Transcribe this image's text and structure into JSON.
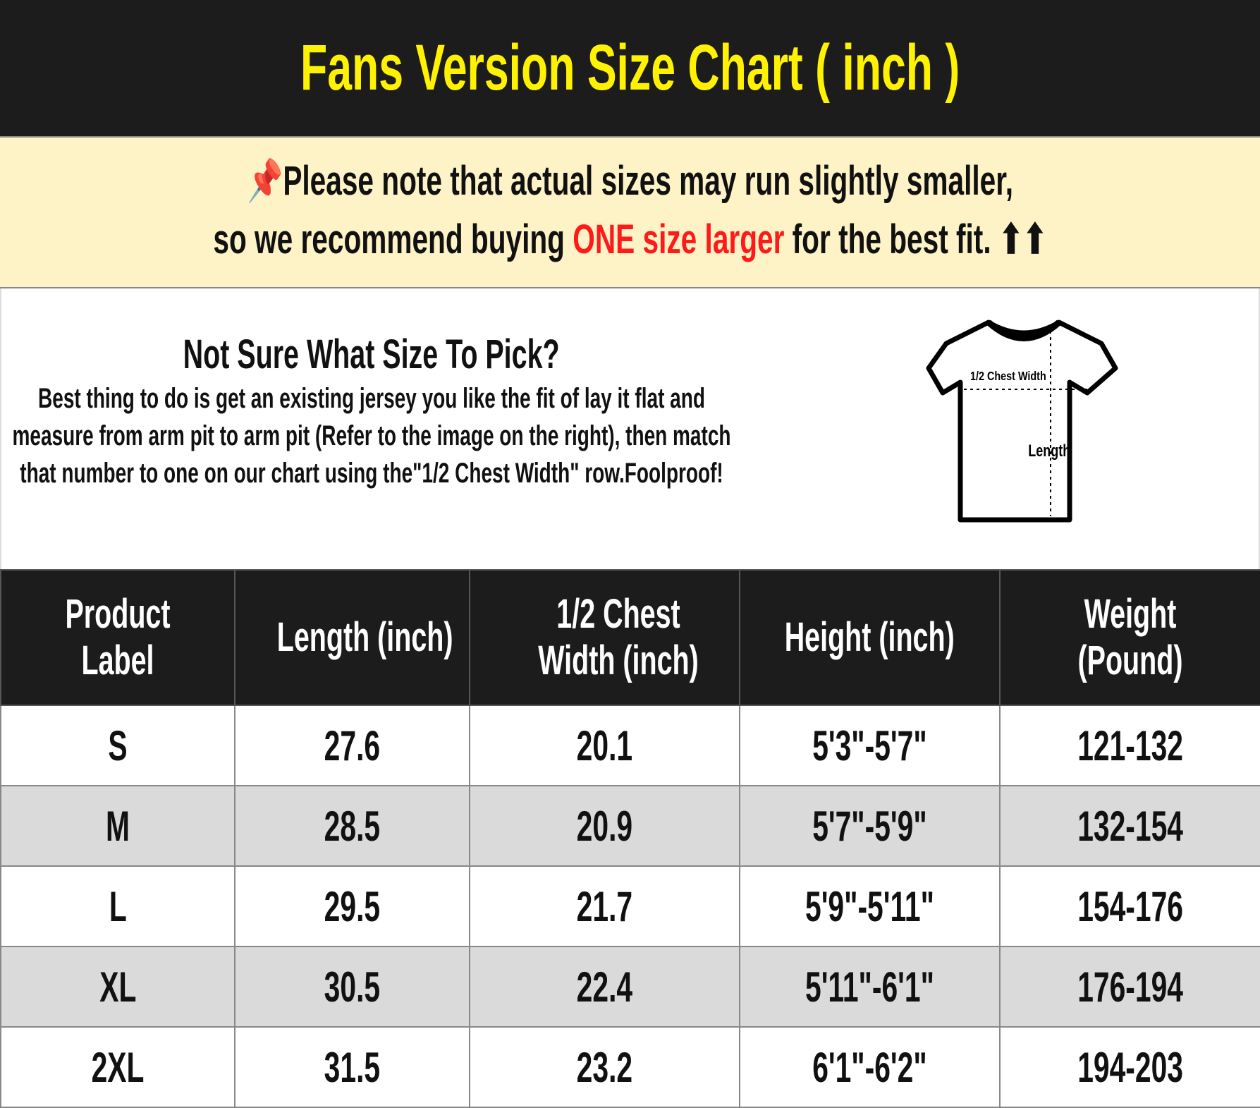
{
  "title": "Fans Version Size Chart ( inch )",
  "note": {
    "line1": "Please note that actual sizes may run slightly smaller,",
    "line2_pre": "so we recommend buying ",
    "line2_highlight": "ONE size larger",
    "line2_post": " for the best fit. ⬆⬆",
    "icon": "pushpin-icon",
    "highlight_color": "#ff1a1a"
  },
  "guide": {
    "heading": "Not Sure What Size To Pick?",
    "text": "Best thing to do is get an existing jersey you like the fit of lay it flat and measure from arm pit to arm pit (Refer to the image on the right), then match that number to one on our chart using the\"1/2 Chest Width\" row.Foolproof!",
    "diagram": {
      "chest_label": "1/2 Chest Width",
      "length_label": "Length"
    }
  },
  "table": {
    "headers": [
      "Product Label",
      "Length (inch)",
      "1/2 Chest Width (inch)",
      "Height (inch)",
      "Weight (Pound)"
    ],
    "rows": [
      [
        "S",
        "27.6",
        "20.1",
        "5'3\"-5'7\"",
        "121-132"
      ],
      [
        "M",
        "28.5",
        "20.9",
        "5'7\"-5'9\"",
        "132-154"
      ],
      [
        "L",
        "29.5",
        "21.7",
        "5'9\"-5'11\"",
        "154-176"
      ],
      [
        "XL",
        "30.5",
        "22.4",
        "5'11\"-6'1\"",
        "176-194"
      ],
      [
        "2XL",
        "31.5",
        "23.2",
        "6'1\"-6'2\"",
        "194-203"
      ]
    ]
  },
  "colors": {
    "title_bg": "#1c1c1c",
    "title_text": "#fff200",
    "note_bg": "#fdf3c6",
    "alt_row": "#dadada"
  }
}
